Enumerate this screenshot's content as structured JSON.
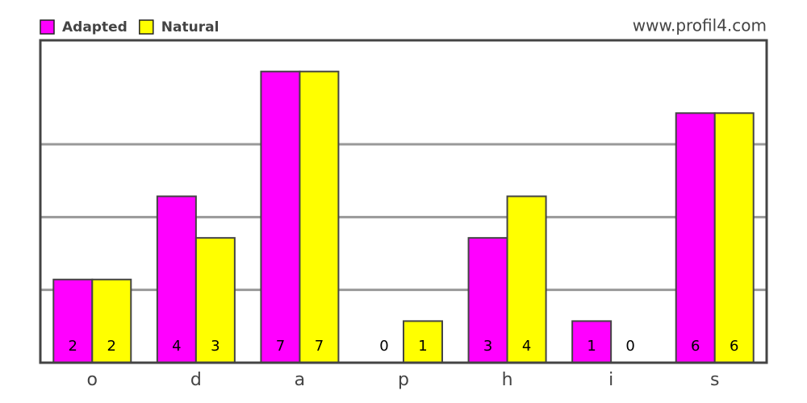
{
  "chart_data": {
    "type": "bar",
    "source": "www.profil4.com",
    "categories": [
      "o",
      "d",
      "a",
      "p",
      "h",
      "i",
      "s"
    ],
    "series": [
      {
        "name": "Adapted",
        "color": "#ff00ff",
        "values": [
          2,
          4,
          7,
          0,
          3,
          1,
          6
        ]
      },
      {
        "name": "Natural",
        "color": "#ffff00",
        "values": [
          2,
          3,
          7,
          1,
          4,
          0,
          6
        ]
      }
    ],
    "ylim": [
      0,
      7.75
    ],
    "gridlines": [
      1.75,
      3.5,
      5.25
    ],
    "grid": true,
    "legend": "top-left"
  }
}
